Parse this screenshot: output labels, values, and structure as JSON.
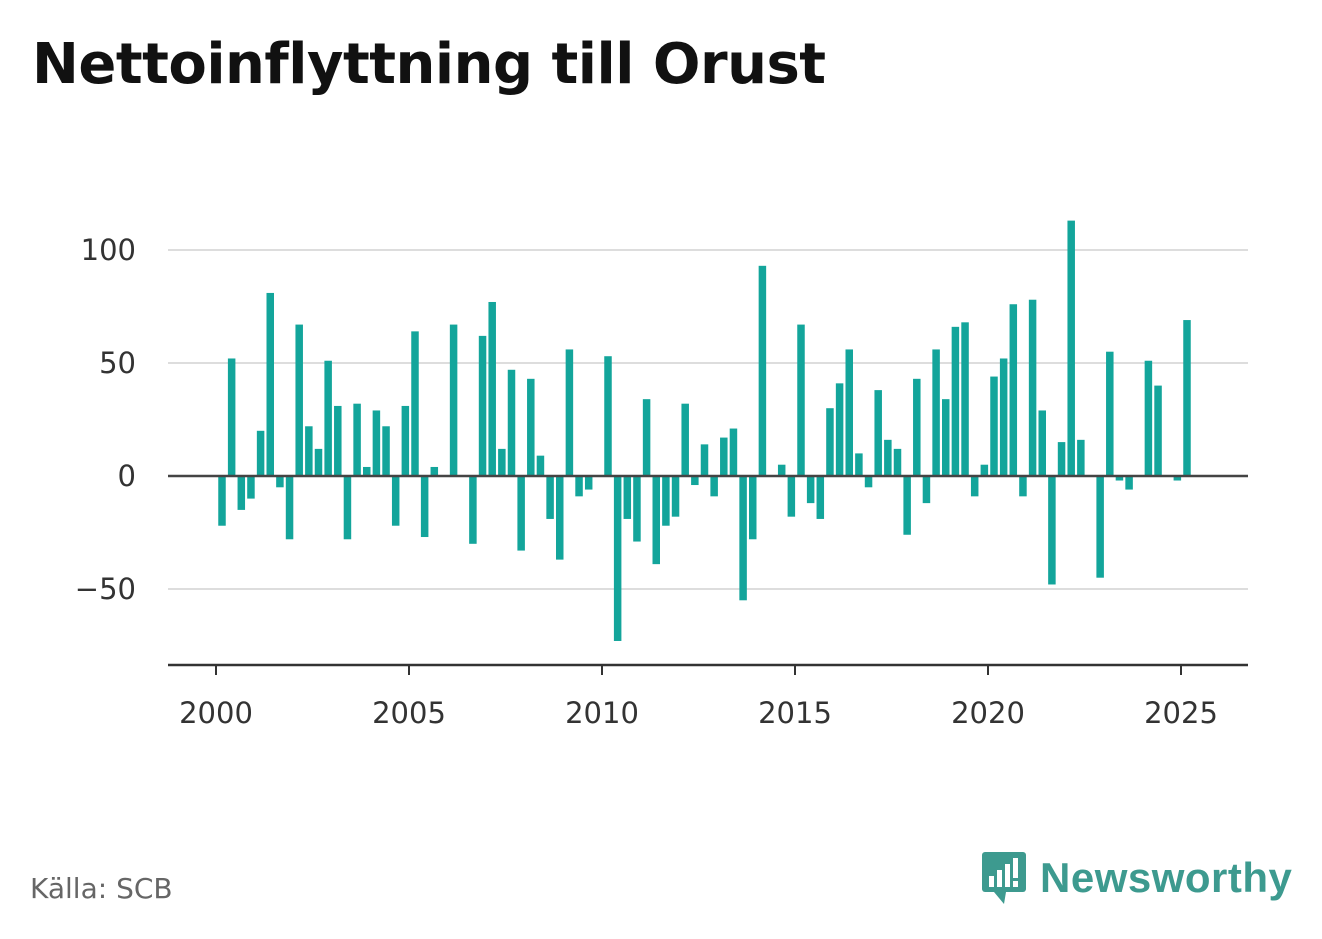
{
  "title": "Nettoinflyttning till Orust",
  "source": "Källa: SCB",
  "brand": {
    "name": "Newsworthy",
    "icon": "newsworthy-logo-icon",
    "color": "#3d9a8f"
  },
  "colors": {
    "bar": "#13a59b",
    "grid": "#dddddd",
    "zero_line": "#444444",
    "axis": "#333333"
  },
  "chart_data": {
    "type": "bar",
    "title": "Nettoinflyttning till Orust",
    "xlabel": "",
    "ylabel": "",
    "grid": true,
    "ylim": [
      -83,
      115
    ],
    "xlim": [
      1999.4,
      2027.0
    ],
    "yticks": [
      -50,
      0,
      50,
      100
    ],
    "ytick_labels": [
      "−50",
      "0",
      "50",
      "100"
    ],
    "xticks": [
      2000,
      2005,
      2010,
      2015,
      2020,
      2025
    ],
    "xtick_labels": [
      "2000",
      "2005",
      "2010",
      "2015",
      "2020",
      "2025"
    ],
    "x_start": 2000.0,
    "x_step": 0.25,
    "values": [
      -22,
      52,
      -15,
      -10,
      20,
      81,
      -5,
      -28,
      67,
      22,
      12,
      51,
      31,
      -28,
      32,
      4,
      29,
      22,
      -22,
      31,
      64,
      -27,
      4,
      0,
      67,
      0,
      -30,
      62,
      77,
      12,
      47,
      -33,
      43,
      9,
      -19,
      -37,
      56,
      -9,
      -6,
      0,
      53,
      -73,
      -19,
      -29,
      34,
      -39,
      -22,
      -18,
      32,
      -4,
      14,
      -9,
      17,
      21,
      -55,
      -28,
      93,
      0,
      5,
      -18,
      67,
      -12,
      -19,
      30,
      41,
      56,
      10,
      -5,
      38,
      16,
      12,
      -26,
      43,
      -12,
      56,
      34,
      66,
      68,
      -9,
      5,
      44,
      52,
      76,
      -9,
      78,
      29,
      -48,
      15,
      113,
      16,
      0,
      -45,
      55,
      -2,
      -6,
      0,
      51,
      40,
      0,
      -2,
      69
    ]
  }
}
